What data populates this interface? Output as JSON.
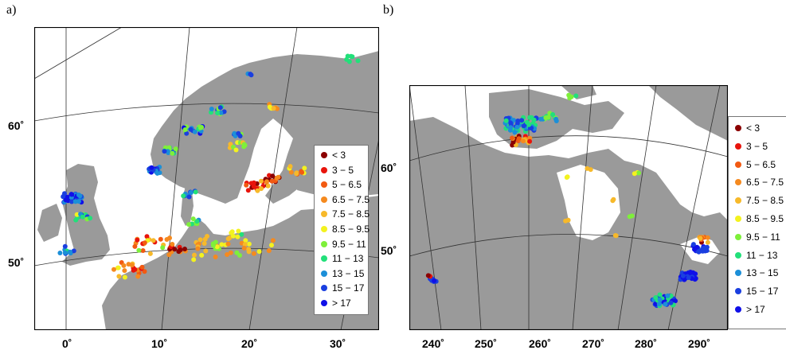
{
  "panels": {
    "a": {
      "label": "a)"
    },
    "b": {
      "label": "b)"
    }
  },
  "map_a": {
    "lat_labels": [
      "60˚",
      "50˚"
    ],
    "lon_labels": [
      "0˚",
      "10˚",
      "20˚",
      "30˚"
    ]
  },
  "map_b": {
    "lat_labels": [
      "60˚",
      "50˚"
    ],
    "lon_labels": [
      "240˚",
      "250˚",
      "260˚",
      "270˚",
      "280˚",
      "290˚"
    ]
  },
  "legend": {
    "entries": [
      {
        "label": "< 3",
        "color": "#8b0000"
      },
      {
        "label": "3 − 5",
        "color": "#e8140c"
      },
      {
        "label": "5 − 6.5",
        "color": "#f25a12"
      },
      {
        "label": "6.5 − 7.5",
        "color": "#f58a1f"
      },
      {
        "label": "7.5 − 8.5",
        "color": "#f7b92a"
      },
      {
        "label": "8.5 − 9.5",
        "color": "#f3f21f"
      },
      {
        "label": "9.5 − 11",
        "color": "#7ef03a"
      },
      {
        "label": "11 − 13",
        "color": "#22e07a"
      },
      {
        "label": "13 − 15",
        "color": "#1c8fd8"
      },
      {
        "label": "15 − 17",
        "color": "#1a3fe0"
      },
      {
        "label": "> 17",
        "color": "#1010e8"
      }
    ]
  },
  "colors": {
    "land": "#9a9a9a",
    "sea": "#ffffff",
    "graticule": "#333333"
  }
}
